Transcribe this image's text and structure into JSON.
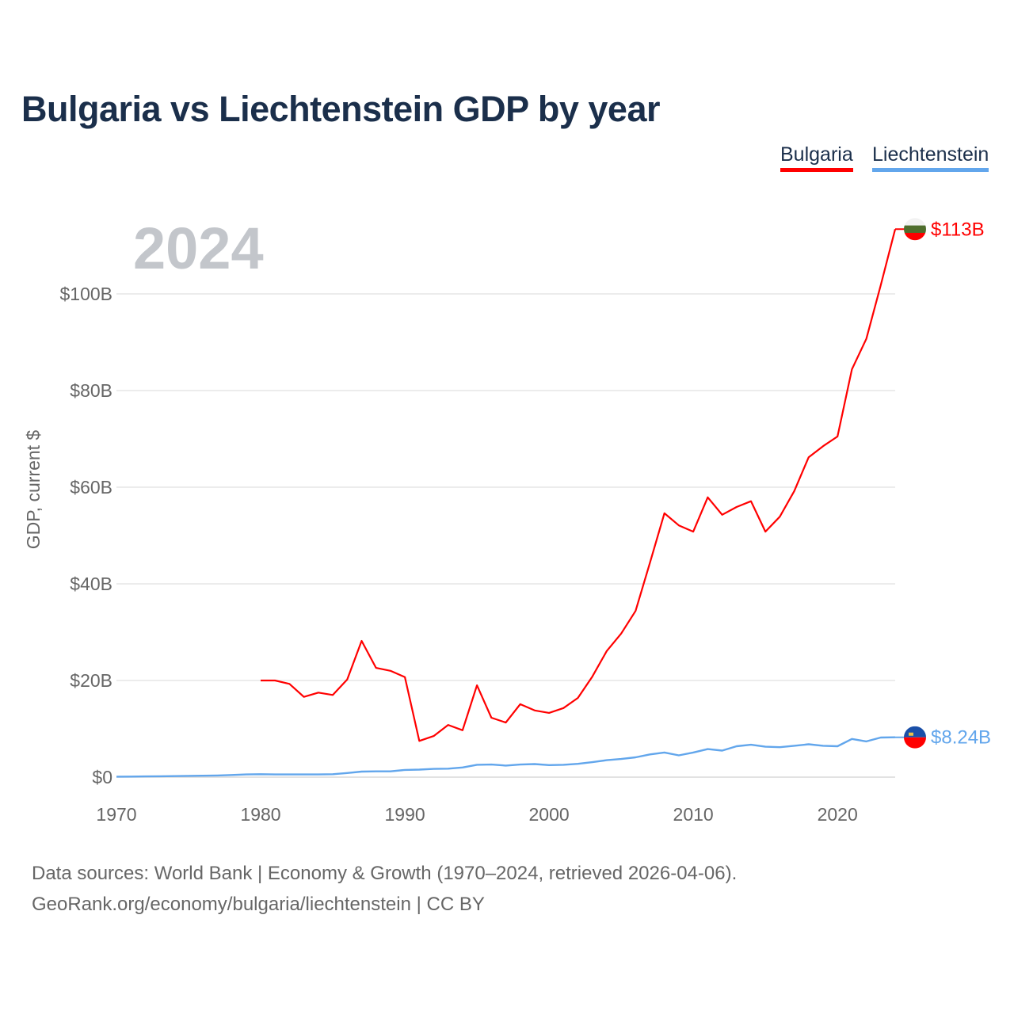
{
  "title": "Bulgaria vs Liechtenstein GDP by year",
  "footer": {
    "line1": "Data sources: World Bank | Economy & Growth (1970–2024, retrieved 2026-04-06).",
    "line2": "GeoRank.org/economy/bulgaria/liechtenstein | CC BY"
  },
  "chart_data": {
    "type": "line",
    "title": "Bulgaria vs Liechtenstein GDP by year",
    "xlabel": "",
    "ylabel": "GDP, current $",
    "year_label": "2024",
    "xlim": [
      1970,
      2024
    ],
    "ylim": [
      0,
      113.4
    ],
    "x_ticks": [
      1970,
      1980,
      1990,
      2000,
      2010,
      2020
    ],
    "x_tick_labels": [
      "1970",
      "1980",
      "1990",
      "2000",
      "2010",
      "2020"
    ],
    "y_ticks": [
      0,
      20,
      40,
      60,
      80,
      100
    ],
    "y_tick_labels": [
      "$0",
      "$20B",
      "$40B",
      "$60B",
      "$80B",
      "$100B"
    ],
    "grid": true,
    "legend_position": "top-right",
    "series": [
      {
        "name": "Bulgaria",
        "color": "#ff0000",
        "end_label": "$113B",
        "flag": "bulgaria-flag",
        "x": [
          1980,
          1981,
          1982,
          1983,
          1984,
          1985,
          1986,
          1987,
          1988,
          1989,
          1990,
          1991,
          1992,
          1993,
          1994,
          1995,
          1996,
          1997,
          1998,
          1999,
          2000,
          2001,
          2002,
          2003,
          2004,
          2005,
          2006,
          2007,
          2008,
          2009,
          2010,
          2011,
          2012,
          2013,
          2014,
          2015,
          2016,
          2017,
          2018,
          2019,
          2020,
          2021,
          2022,
          2023,
          2024
        ],
        "values": [
          20.0,
          20.0,
          19.3,
          16.6,
          17.5,
          17.0,
          20.2,
          28.2,
          22.6,
          22.0,
          20.7,
          7.5,
          8.5,
          10.8,
          9.7,
          19.0,
          12.3,
          11.3,
          15.1,
          13.8,
          13.3,
          14.3,
          16.4,
          20.8,
          26.1,
          29.7,
          34.4,
          44.4,
          54.6,
          52.1,
          50.8,
          57.9,
          54.3,
          55.9,
          57.1,
          50.8,
          53.9,
          59.2,
          66.2,
          68.5,
          70.5,
          84.4,
          90.7,
          101.8,
          113.4
        ]
      },
      {
        "name": "Liechtenstein",
        "color": "#62a6ec",
        "end_label": "$8.24B",
        "flag": "liechtenstein-flag",
        "x": [
          1970,
          1971,
          1972,
          1973,
          1974,
          1975,
          1976,
          1977,
          1978,
          1979,
          1980,
          1981,
          1982,
          1983,
          1984,
          1985,
          1986,
          1987,
          1988,
          1989,
          1990,
          1991,
          1992,
          1993,
          1994,
          1995,
          1996,
          1997,
          1998,
          1999,
          2000,
          2001,
          2002,
          2003,
          2004,
          2005,
          2006,
          2007,
          2008,
          2009,
          2010,
          2011,
          2012,
          2013,
          2014,
          2015,
          2016,
          2017,
          2018,
          2019,
          2020,
          2021,
          2022,
          2023,
          2024
        ],
        "values": [
          0.1,
          0.12,
          0.14,
          0.18,
          0.22,
          0.27,
          0.3,
          0.35,
          0.45,
          0.55,
          0.6,
          0.55,
          0.55,
          0.55,
          0.55,
          0.6,
          0.85,
          1.15,
          1.2,
          1.2,
          1.5,
          1.55,
          1.7,
          1.75,
          2.0,
          2.55,
          2.6,
          2.4,
          2.6,
          2.7,
          2.5,
          2.55,
          2.75,
          3.1,
          3.5,
          3.75,
          4.1,
          4.7,
          5.1,
          4.5,
          5.1,
          5.8,
          5.5,
          6.4,
          6.7,
          6.3,
          6.2,
          6.5,
          6.8,
          6.5,
          6.4,
          7.9,
          7.4,
          8.2,
          8.24
        ]
      }
    ]
  }
}
